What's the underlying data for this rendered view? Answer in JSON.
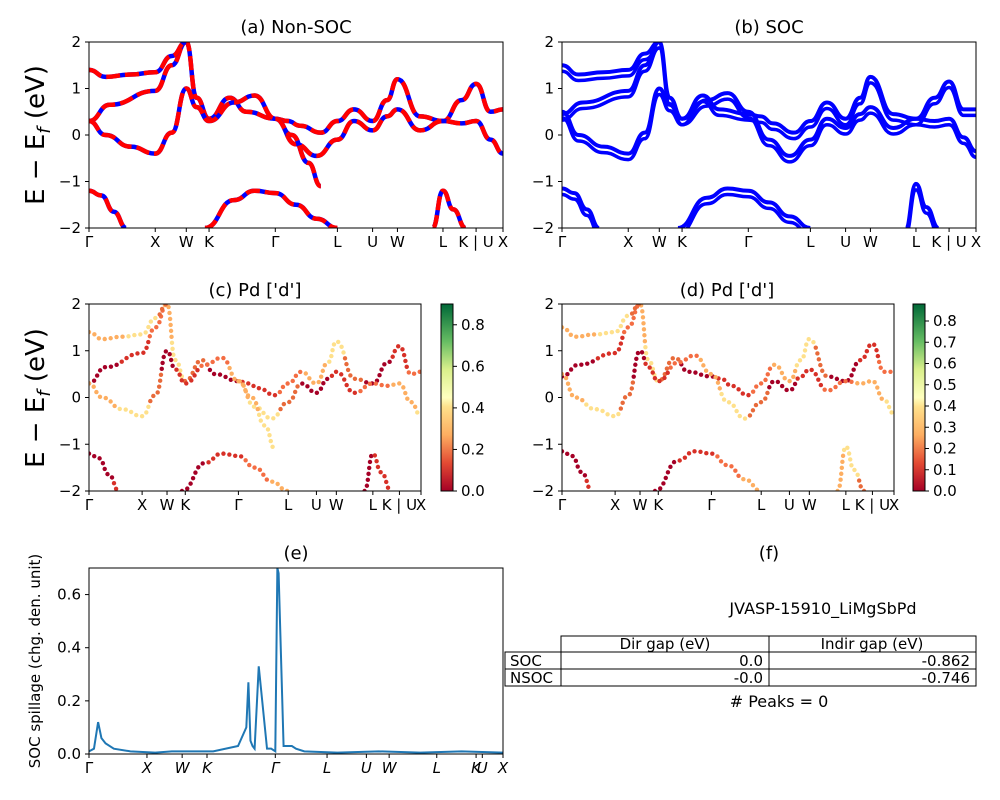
{
  "panels": {
    "a": {
      "title": "(a) Non-SOC"
    },
    "b": {
      "title": "(b) SOC"
    },
    "c": {
      "title": "(c)  Pd ['d']"
    },
    "d": {
      "title": "(d) Pd ['d']"
    },
    "e": {
      "title": "(e)"
    },
    "f": {
      "title": "(f)"
    }
  },
  "band_axes": {
    "ylabel": "E − E_f (eV)",
    "ylim": [
      -2,
      2
    ],
    "yticks": [
      "−2",
      "−1",
      "0",
      "1",
      "2"
    ],
    "kpath_labels": [
      "Γ",
      "X",
      "W",
      "K",
      "Γ",
      "L",
      "U",
      "W",
      "L",
      "K | U",
      "X"
    ]
  },
  "colorbars": {
    "c": {
      "range": [
        0.0,
        0.9
      ],
      "ticks": [
        "0.0",
        "0.2",
        "0.4",
        "0.6",
        "0.8"
      ],
      "colormap": "RdYlGn"
    },
    "d": {
      "range": [
        0.0,
        0.88
      ],
      "ticks": [
        "0.0",
        "0.1",
        "0.2",
        "0.3",
        "0.4",
        "0.5",
        "0.6",
        "0.7",
        "0.8"
      ],
      "colormap": "RdYlGn"
    }
  },
  "spillage": {
    "ylabel": "SOC spillage (chg. den. unit)",
    "yticks": [
      "0.0",
      "0.2",
      "0.4",
      "0.6"
    ],
    "xticks": [
      "Γ",
      "X",
      "W",
      "K",
      "Γ",
      "L",
      "U",
      "W",
      "L",
      "K",
      "U",
      "X"
    ],
    "color": "#1f77b4"
  },
  "summary": {
    "material": "JVASP-15910_LiMgSbPd",
    "columns": [
      "Dir gap (eV)",
      "Indir gap (eV)"
    ],
    "rows": [
      {
        "label": "SOC",
        "dir": "0.0",
        "indir": "-0.862"
      },
      {
        "label": "NSOC",
        "dir": "-0.0",
        "indir": "-0.746"
      }
    ],
    "peaks": "# Peaks = 0"
  },
  "colors": {
    "nonsoc_a": "#ff0000",
    "nonsoc_b": "#0000ff",
    "soc": "#0000ff",
    "spillage": "#1f77b4"
  },
  "chart_data": [
    {
      "type": "line",
      "title": "(a) Non-SOC",
      "ylabel": "E − E_f (eV)",
      "ylim": [
        -2,
        2
      ],
      "k_ticks": [
        0,
        0.16,
        0.235,
        0.29,
        0.45,
        0.6,
        0.685,
        0.745,
        0.855,
        0.935,
        1.0
      ],
      "k_tick_labels": [
        "Γ",
        "X",
        "W",
        "K",
        "Γ",
        "L",
        "U",
        "W",
        "L",
        "K | U",
        "X"
      ],
      "series": [
        {
          "values_k": [
            0,
            0.05,
            0.16,
            0.2,
            0.235,
            0.26,
            0.29,
            0.34,
            0.38,
            0.45,
            0.48,
            0.51,
            0.56,
            0.6,
            0.64,
            0.685,
            0.72,
            0.745,
            0.8,
            0.855,
            0.9,
            0.935,
            0.97,
            1.0
          ],
          "values_e": [
            0.3,
            0.65,
            0.95,
            1.5,
            2.0,
            0.8,
            0.35,
            0.8,
            0.5,
            0.35,
            0.3,
            0.2,
            0.05,
            0.3,
            0.55,
            0.3,
            0.75,
            1.2,
            0.4,
            0.3,
            0.75,
            1.1,
            0.5,
            0.55
          ]
        },
        {
          "values_k": [
            0,
            0.04,
            0.1,
            0.16,
            0.2,
            0.235,
            0.26,
            0.29,
            0.35,
            0.4,
            0.45,
            0.5,
            0.55,
            0.6,
            0.64,
            0.685,
            0.72,
            0.745,
            0.8,
            0.855,
            0.9,
            0.935,
            0.97,
            1.0
          ],
          "values_e": [
            0.3,
            0.0,
            -0.25,
            -0.4,
            0.05,
            1.0,
            0.6,
            0.3,
            0.7,
            0.85,
            0.35,
            -0.2,
            -0.45,
            -0.1,
            0.3,
            0.1,
            0.4,
            0.55,
            0.1,
            0.3,
            0.25,
            0.3,
            -0.1,
            -0.4
          ]
        },
        {
          "values_k": [
            0,
            0.03,
            0.06,
            0.09
          ],
          "values_e": [
            -1.2,
            -1.3,
            -1.65,
            -2.0
          ]
        },
        {
          "values_k": [
            0,
            0.04,
            0.1,
            0.16,
            0.2,
            0.235
          ],
          "values_e": [
            1.4,
            1.25,
            1.3,
            1.35,
            1.7,
            2.0
          ]
        },
        {
          "values_k": [
            0.28,
            0.35,
            0.4,
            0.45,
            0.5,
            0.55,
            0.6
          ],
          "values_e": [
            -2.0,
            -1.4,
            -1.2,
            -1.25,
            -1.5,
            -1.8,
            -2.0
          ]
        },
        {
          "values_k": [
            0.45,
            0.49,
            0.53,
            0.56
          ],
          "values_e": [
            0.35,
            0.0,
            -0.6,
            -1.1
          ]
        },
        {
          "values_k": [
            0.83,
            0.855,
            0.88,
            0.91
          ],
          "values_e": [
            -2.0,
            -1.2,
            -1.6,
            -2.0
          ]
        }
      ]
    },
    {
      "type": "line",
      "title": "(b) SOC",
      "ylabel": "",
      "ylim": [
        -2,
        2
      ],
      "k_tick_labels": [
        "Γ",
        "X",
        "W",
        "K",
        "Γ",
        "L",
        "U",
        "W",
        "L",
        "K | U",
        "X"
      ],
      "series": [
        {
          "values_k": [
            0,
            0.05,
            0.16,
            0.2,
            0.235,
            0.26,
            0.29,
            0.34,
            0.38,
            0.45,
            0.48,
            0.51,
            0.56,
            0.6,
            0.64,
            0.685,
            0.72,
            0.745,
            0.8,
            0.855,
            0.9,
            0.935,
            0.97,
            1.0
          ],
          "values_e": [
            0.45,
            0.7,
            0.95,
            1.5,
            2.0,
            0.8,
            0.35,
            0.85,
            0.55,
            0.45,
            0.4,
            0.25,
            0.05,
            0.3,
            0.7,
            0.35,
            0.8,
            1.25,
            0.45,
            0.35,
            0.8,
            1.15,
            0.55,
            0.55
          ]
        },
        {
          "values_k": [
            0,
            0.04,
            0.1,
            0.16,
            0.2,
            0.235,
            0.26,
            0.29,
            0.35,
            0.4,
            0.45,
            0.5,
            0.55,
            0.6,
            0.64,
            0.685,
            0.72,
            0.745,
            0.8,
            0.855,
            0.9,
            0.935,
            0.97,
            1.0
          ],
          "values_e": [
            0.5,
            0.0,
            -0.25,
            -0.4,
            0.05,
            1.0,
            0.65,
            0.35,
            0.75,
            0.9,
            0.5,
            -0.1,
            -0.45,
            -0.1,
            0.35,
            0.15,
            0.45,
            0.6,
            0.15,
            0.35,
            0.3,
            0.35,
            -0.05,
            -0.35
          ]
        },
        {
          "values_k": [
            0,
            0.03,
            0.06,
            0.09
          ],
          "values_e": [
            -1.15,
            -1.25,
            -1.6,
            -2.0
          ]
        },
        {
          "values_k": [
            0,
            0.04,
            0.1,
            0.16,
            0.2,
            0.235
          ],
          "values_e": [
            1.5,
            1.3,
            1.35,
            1.4,
            1.75,
            2.0
          ]
        },
        {
          "values_k": [
            0.28,
            0.35,
            0.4,
            0.45,
            0.5,
            0.55,
            0.6
          ],
          "values_e": [
            -2.0,
            -1.35,
            -1.15,
            -1.2,
            -1.45,
            -1.75,
            -2.0
          ]
        },
        {
          "values_k": [
            0.83,
            0.855,
            0.88,
            0.91
          ],
          "values_e": [
            -2.0,
            -1.05,
            -1.55,
            -2.0
          ]
        }
      ]
    },
    {
      "type": "line",
      "title": "(e)",
      "ylabel": "SOC spillage (chg. den. unit)",
      "ylim": [
        0,
        0.7
      ],
      "x": [
        0,
        0.012,
        0.022,
        0.03,
        0.04,
        0.06,
        0.1,
        0.16,
        0.2,
        0.3,
        0.36,
        0.38,
        0.385,
        0.39,
        0.395,
        0.4,
        0.41,
        0.43,
        0.44,
        0.45,
        0.455,
        0.458,
        0.47,
        0.49,
        0.5,
        0.52,
        0.6,
        0.7,
        0.8,
        0.9,
        1.0
      ],
      "values": [
        0.01,
        0.02,
        0.12,
        0.06,
        0.04,
        0.02,
        0.01,
        0.005,
        0.01,
        0.01,
        0.03,
        0.1,
        0.27,
        0.05,
        0.03,
        0.02,
        0.33,
        0.02,
        0.02,
        0.01,
        0.7,
        0.68,
        0.03,
        0.03,
        0.02,
        0.01,
        0.005,
        0.01,
        0.005,
        0.01,
        0.005
      ]
    },
    {
      "type": "table",
      "title": "JVASP-15910_LiMgSbPd",
      "columns": [
        "",
        "Dir gap (eV)",
        "Indir gap (eV)"
      ],
      "rows": [
        [
          "SOC",
          "0.0",
          "-0.862"
        ],
        [
          "NSOC",
          "-0.0",
          "-0.746"
        ]
      ]
    }
  ]
}
